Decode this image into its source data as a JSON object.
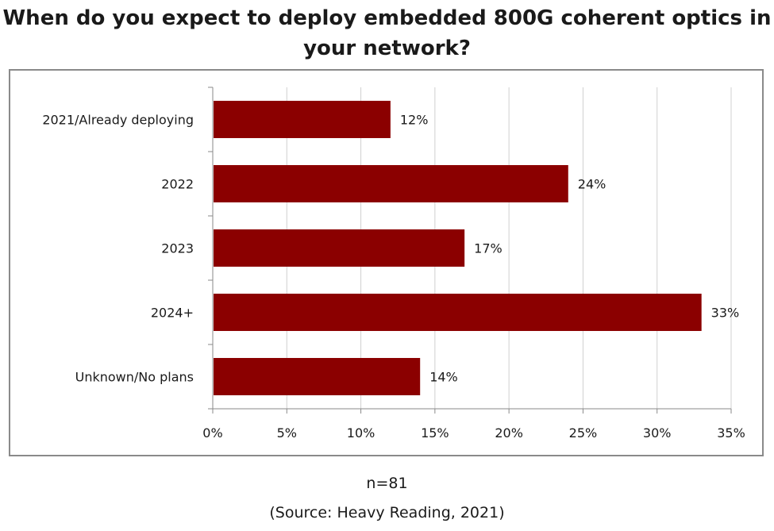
{
  "title_line1": "When do you expect to deploy embedded 800G coherent optics in",
  "title_line2": "your network?",
  "sample_note": "n=81",
  "source_note": "(Source: Heavy Reading, 2021)",
  "colors": {
    "bar": "#8b0000",
    "grid": "#d0d0d0",
    "axis": "#8a8a8a"
  },
  "chart_data": {
    "type": "bar",
    "orientation": "horizontal",
    "categories": [
      "2021/Already deploying",
      "2022",
      "2023",
      "2024+",
      "Unknown/No plans"
    ],
    "values": [
      12,
      24,
      17,
      33,
      14
    ],
    "value_labels": [
      "12%",
      "24%",
      "17%",
      "33%",
      "14%"
    ],
    "xlim": [
      0,
      35
    ],
    "xticks": [
      0,
      5,
      10,
      15,
      20,
      25,
      30,
      35
    ],
    "xtick_labels": [
      "0%",
      "5%",
      "10%",
      "15%",
      "20%",
      "25%",
      "30%",
      "35%"
    ],
    "grid": true,
    "legend": "none"
  }
}
